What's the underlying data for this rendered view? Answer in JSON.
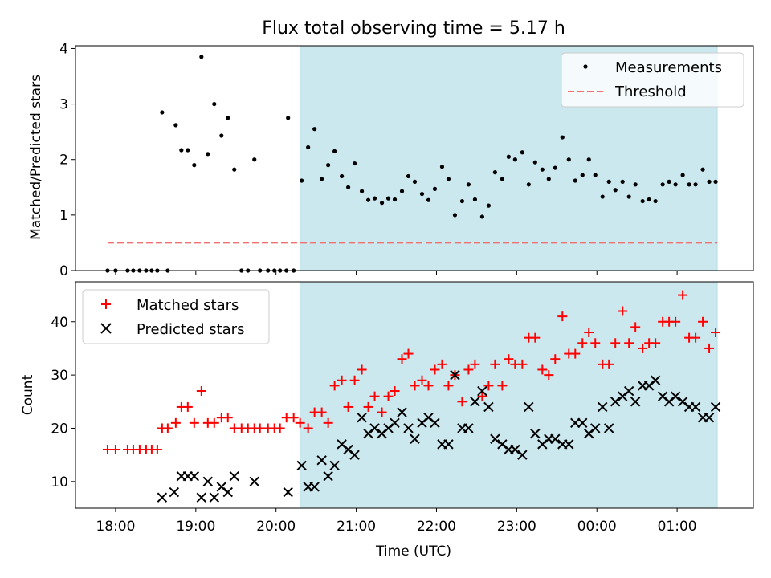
{
  "chart_data": [
    {
      "type": "scatter",
      "title": "Flux total observing time = 5.17 h",
      "ylabel": "Matched/Predicted stars",
      "xlabel": "",
      "x_unit": "hours since 18:00 UTC",
      "xlim": [
        -0.5,
        7.95
      ],
      "ylim": [
        0,
        4.05
      ],
      "yticks": [
        "0",
        "1",
        "2",
        "3",
        "4"
      ],
      "xtick_labels": [
        "18:00",
        "19:00",
        "20:00",
        "21:00",
        "22:00",
        "23:00",
        "00:00",
        "01:00"
      ],
      "shaded_span": [
        2.3,
        7.5
      ],
      "legend_position": "upper right",
      "series": [
        {
          "name": "Measurements",
          "color": "#000000",
          "marker": "dot",
          "points": [
            [
              -0.1,
              0
            ],
            [
              0,
              0
            ],
            [
              0.15,
              0
            ],
            [
              0.22,
              0
            ],
            [
              0.3,
              0
            ],
            [
              0.38,
              0
            ],
            [
              0.45,
              0
            ],
            [
              0.52,
              0
            ],
            [
              0.65,
              0
            ],
            [
              0.58,
              2.85
            ],
            [
              0.75,
              2.62
            ],
            [
              0.82,
              2.17
            ],
            [
              0.9,
              2.17
            ],
            [
              0.98,
              1.9
            ],
            [
              1.07,
              3.85
            ],
            [
              1.15,
              2.1
            ],
            [
              1.23,
              3.0
            ],
            [
              1.32,
              2.43
            ],
            [
              1.4,
              2.75
            ],
            [
              1.48,
              1.82
            ],
            [
              1.57,
              0
            ],
            [
              1.65,
              0
            ],
            [
              1.73,
              2.0
            ],
            [
              1.8,
              0
            ],
            [
              1.9,
              0
            ],
            [
              1.98,
              0
            ],
            [
              2.05,
              0
            ],
            [
              2.13,
              0
            ],
            [
              2.15,
              2.75
            ],
            [
              2.22,
              0
            ],
            [
              2.32,
              1.62
            ],
            [
              2.4,
              2.22
            ],
            [
              2.48,
              2.55
            ],
            [
              2.57,
              1.65
            ],
            [
              2.65,
              1.9
            ],
            [
              2.73,
              2.15
            ],
            [
              2.82,
              1.7
            ],
            [
              2.9,
              1.5
            ],
            [
              2.98,
              1.93
            ],
            [
              3.07,
              1.43
            ],
            [
              3.15,
              1.27
            ],
            [
              3.23,
              1.3
            ],
            [
              3.32,
              1.22
            ],
            [
              3.4,
              1.3
            ],
            [
              3.48,
              1.28
            ],
            [
              3.57,
              1.43
            ],
            [
              3.65,
              1.7
            ],
            [
              3.73,
              1.6
            ],
            [
              3.82,
              1.38
            ],
            [
              3.9,
              1.27
            ],
            [
              3.98,
              1.47
            ],
            [
              4.07,
              1.87
            ],
            [
              4.15,
              1.65
            ],
            [
              4.23,
              1.0
            ],
            [
              4.32,
              1.25
            ],
            [
              4.4,
              1.55
            ],
            [
              4.48,
              1.28
            ],
            [
              4.57,
              0.97
            ],
            [
              4.65,
              1.17
            ],
            [
              4.73,
              1.77
            ],
            [
              4.82,
              1.65
            ],
            [
              4.9,
              2.05
            ],
            [
              4.98,
              2.0
            ],
            [
              5.07,
              2.13
            ],
            [
              5.15,
              1.55
            ],
            [
              5.23,
              1.95
            ],
            [
              5.32,
              1.82
            ],
            [
              5.4,
              1.65
            ],
            [
              5.48,
              1.85
            ],
            [
              5.57,
              2.4
            ],
            [
              5.65,
              2.0
            ],
            [
              5.73,
              1.62
            ],
            [
              5.82,
              1.72
            ],
            [
              5.9,
              2.0
            ],
            [
              5.98,
              1.72
            ],
            [
              6.07,
              1.33
            ],
            [
              6.15,
              1.6
            ],
            [
              6.23,
              1.45
            ],
            [
              6.32,
              1.6
            ],
            [
              6.4,
              1.33
            ],
            [
              6.48,
              1.55
            ],
            [
              6.57,
              1.25
            ],
            [
              6.65,
              1.28
            ],
            [
              6.73,
              1.25
            ],
            [
              6.82,
              1.55
            ],
            [
              6.9,
              1.6
            ],
            [
              6.98,
              1.55
            ],
            [
              7.07,
              1.72
            ],
            [
              7.15,
              1.55
            ],
            [
              7.23,
              1.55
            ],
            [
              7.32,
              1.82
            ],
            [
              7.4,
              1.6
            ],
            [
              7.48,
              1.6
            ]
          ]
        },
        {
          "name": "Threshold",
          "color": "#f07070",
          "style": "dashed",
          "x": [
            -0.1,
            7.5
          ],
          "y": [
            0.5,
            0.5
          ]
        }
      ]
    },
    {
      "type": "scatter",
      "title": "",
      "ylabel": "Count",
      "xlabel": "Time (UTC)",
      "x_unit": "hours since 18:00 UTC",
      "xlim": [
        -0.5,
        7.95
      ],
      "ylim": [
        5,
        47.5
      ],
      "yticks": [
        "10",
        "20",
        "30",
        "40"
      ],
      "xtick_labels": [
        "18:00",
        "19:00",
        "20:00",
        "21:00",
        "22:00",
        "23:00",
        "00:00",
        "01:00"
      ],
      "shaded_span": [
        2.3,
        7.5
      ],
      "legend_position": "upper left",
      "series": [
        {
          "name": "Matched stars",
          "color": "#ff0000",
          "marker": "plus",
          "points": [
            [
              -0.1,
              16
            ],
            [
              0,
              16
            ],
            [
              0.15,
              16
            ],
            [
              0.22,
              16
            ],
            [
              0.3,
              16
            ],
            [
              0.38,
              16
            ],
            [
              0.45,
              16
            ],
            [
              0.52,
              16
            ],
            [
              0.58,
              20
            ],
            [
              0.65,
              20
            ],
            [
              0.75,
              21
            ],
            [
              0.82,
              24
            ],
            [
              0.9,
              24
            ],
            [
              0.98,
              21
            ],
            [
              1.07,
              27
            ],
            [
              1.15,
              21
            ],
            [
              1.23,
              21
            ],
            [
              1.32,
              22
            ],
            [
              1.4,
              22
            ],
            [
              1.48,
              20
            ],
            [
              1.57,
              20
            ],
            [
              1.65,
              20
            ],
            [
              1.73,
              20
            ],
            [
              1.8,
              20
            ],
            [
              1.9,
              20
            ],
            [
              1.98,
              20
            ],
            [
              2.05,
              20
            ],
            [
              2.13,
              22
            ],
            [
              2.22,
              22
            ],
            [
              2.3,
              21
            ],
            [
              2.4,
              20
            ],
            [
              2.48,
              23
            ],
            [
              2.57,
              23
            ],
            [
              2.65,
              21
            ],
            [
              2.73,
              28
            ],
            [
              2.82,
              29
            ],
            [
              2.9,
              24
            ],
            [
              2.98,
              29
            ],
            [
              3.07,
              31
            ],
            [
              3.15,
              24
            ],
            [
              3.23,
              26
            ],
            [
              3.32,
              23
            ],
            [
              3.4,
              26
            ],
            [
              3.48,
              27
            ],
            [
              3.57,
              33
            ],
            [
              3.65,
              34
            ],
            [
              3.73,
              28
            ],
            [
              3.82,
              29
            ],
            [
              3.9,
              28
            ],
            [
              3.98,
              31
            ],
            [
              4.07,
              32
            ],
            [
              4.15,
              28
            ],
            [
              4.23,
              30
            ],
            [
              4.32,
              25
            ],
            [
              4.4,
              31
            ],
            [
              4.48,
              32
            ],
            [
              4.57,
              26
            ],
            [
              4.65,
              28
            ],
            [
              4.73,
              32
            ],
            [
              4.82,
              28
            ],
            [
              4.9,
              33
            ],
            [
              4.98,
              32
            ],
            [
              5.07,
              32
            ],
            [
              5.15,
              37
            ],
            [
              5.23,
              37
            ],
            [
              5.32,
              31
            ],
            [
              5.4,
              30
            ],
            [
              5.48,
              33
            ],
            [
              5.57,
              41
            ],
            [
              5.65,
              34
            ],
            [
              5.73,
              34
            ],
            [
              5.82,
              36
            ],
            [
              5.9,
              38
            ],
            [
              5.98,
              36
            ],
            [
              6.07,
              32
            ],
            [
              6.15,
              32
            ],
            [
              6.23,
              36
            ],
            [
              6.32,
              42
            ],
            [
              6.4,
              36
            ],
            [
              6.48,
              39
            ],
            [
              6.57,
              35
            ],
            [
              6.65,
              36
            ],
            [
              6.73,
              36
            ],
            [
              6.82,
              40
            ],
            [
              6.9,
              40
            ],
            [
              6.98,
              40
            ],
            [
              7.07,
              45
            ],
            [
              7.15,
              37
            ],
            [
              7.23,
              37
            ],
            [
              7.32,
              40
            ],
            [
              7.4,
              35
            ],
            [
              7.48,
              38
            ]
          ]
        },
        {
          "name": "Predicted stars",
          "color": "#000000",
          "marker": "x",
          "points": [
            [
              0.58,
              7
            ],
            [
              0.73,
              8
            ],
            [
              0.82,
              11
            ],
            [
              0.9,
              11
            ],
            [
              0.98,
              11
            ],
            [
              1.07,
              7
            ],
            [
              1.15,
              10
            ],
            [
              1.23,
              7
            ],
            [
              1.32,
              9
            ],
            [
              1.4,
              8
            ],
            [
              1.48,
              11
            ],
            [
              1.73,
              10
            ],
            [
              2.15,
              8
            ],
            [
              2.32,
              13
            ],
            [
              2.4,
              9
            ],
            [
              2.48,
              9
            ],
            [
              2.57,
              14
            ],
            [
              2.65,
              11
            ],
            [
              2.73,
              13
            ],
            [
              2.82,
              17
            ],
            [
              2.9,
              16
            ],
            [
              2.98,
              15
            ],
            [
              3.07,
              22
            ],
            [
              3.15,
              19
            ],
            [
              3.23,
              20
            ],
            [
              3.32,
              19
            ],
            [
              3.4,
              20
            ],
            [
              3.48,
              21
            ],
            [
              3.57,
              23
            ],
            [
              3.65,
              20
            ],
            [
              3.73,
              18
            ],
            [
              3.82,
              21
            ],
            [
              3.9,
              22
            ],
            [
              3.98,
              21
            ],
            [
              4.07,
              17
            ],
            [
              4.15,
              17
            ],
            [
              4.23,
              30
            ],
            [
              4.32,
              20
            ],
            [
              4.4,
              20
            ],
            [
              4.48,
              25
            ],
            [
              4.57,
              27
            ],
            [
              4.65,
              24
            ],
            [
              4.73,
              18
            ],
            [
              4.82,
              17
            ],
            [
              4.9,
              16
            ],
            [
              4.98,
              16
            ],
            [
              5.07,
              15
            ],
            [
              5.15,
              24
            ],
            [
              5.23,
              19
            ],
            [
              5.32,
              17
            ],
            [
              5.4,
              18
            ],
            [
              5.48,
              18
            ],
            [
              5.57,
              17
            ],
            [
              5.65,
              17
            ],
            [
              5.73,
              21
            ],
            [
              5.82,
              21
            ],
            [
              5.9,
              19
            ],
            [
              5.98,
              20
            ],
            [
              6.07,
              24
            ],
            [
              6.15,
              20
            ],
            [
              6.23,
              25
            ],
            [
              6.32,
              26
            ],
            [
              6.4,
              27
            ],
            [
              6.48,
              25
            ],
            [
              6.57,
              28
            ],
            [
              6.65,
              28
            ],
            [
              6.73,
              29
            ],
            [
              6.82,
              26
            ],
            [
              6.9,
              25
            ],
            [
              6.98,
              26
            ],
            [
              7.07,
              25
            ],
            [
              7.15,
              24
            ],
            [
              7.23,
              24
            ],
            [
              7.32,
              22
            ],
            [
              7.4,
              22
            ],
            [
              7.48,
              24
            ]
          ]
        }
      ]
    }
  ],
  "colors": {
    "shade": "#cce8ef",
    "axis": "#000000",
    "legend_border": "#cccccc"
  }
}
